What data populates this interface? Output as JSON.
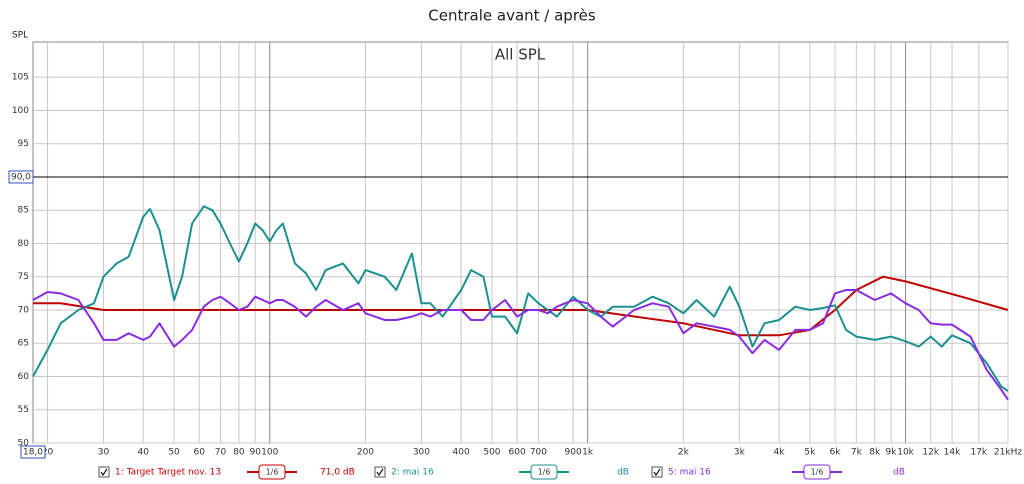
{
  "chart_data": {
    "type": "line",
    "title": "Centrale avant / après",
    "annotation": "All SPL",
    "y_label": "SPL",
    "log_x": true,
    "grid": true,
    "xlim": [
      18,
      21000
    ],
    "ylim": [
      50,
      110.3
    ],
    "yticks": [
      50,
      55,
      60,
      65,
      70,
      75,
      80,
      85,
      95,
      100,
      105
    ],
    "xticks": [
      20,
      30,
      40,
      50,
      60,
      70,
      80,
      90,
      100,
      200,
      300,
      400,
      500,
      600,
      700,
      900,
      {
        "value": 1000,
        "label": "1k"
      },
      {
        "value": 2000,
        "label": "2k"
      },
      {
        "value": 3000,
        "label": "3k"
      },
      {
        "value": 4000,
        "label": "4k"
      },
      {
        "value": 5000,
        "label": "5k"
      },
      {
        "value": 6000,
        "label": "6k"
      },
      {
        "value": 7000,
        "label": "7k"
      },
      {
        "value": 8000,
        "label": "8k"
      },
      {
        "value": 9000,
        "label": "9k"
      },
      {
        "value": 10000,
        "label": "10k"
      },
      {
        "value": 12000,
        "label": "12k"
      },
      {
        "value": 14000,
        "label": "14k"
      },
      {
        "value": 17000,
        "label": "17k"
      },
      {
        "value": 21000,
        "label": "21kHz"
      }
    ],
    "cursor_x": {
      "value": 18,
      "label": "18,0"
    },
    "cursor_y": {
      "value": 90,
      "label": "90,0"
    },
    "x": [
      18,
      20,
      22,
      25,
      28,
      30,
      33,
      36,
      40,
      42,
      45,
      50,
      53,
      57,
      62,
      66,
      70,
      75,
      80,
      85,
      90,
      95,
      100,
      105,
      110,
      120,
      130,
      140,
      150,
      170,
      190,
      200,
      230,
      250,
      280,
      300,
      320,
      350,
      400,
      430,
      470,
      500,
      550,
      600,
      650,
      700,
      750,
      800,
      900,
      1000,
      1100,
      1200,
      1400,
      1600,
      1800,
      2000,
      2200,
      2500,
      2800,
      3000,
      3300,
      3600,
      4000,
      4500,
      5000,
      5500,
      6000,
      6500,
      7000,
      8000,
      9000,
      10000,
      11000,
      12000,
      13000,
      14000,
      16000,
      18000,
      20000,
      21000
    ],
    "series": [
      {
        "name": "1: Target Target nov. 13",
        "color": "#c00000",
        "smoothing": "1/6",
        "offset": "71,0 dB",
        "x": [
          18,
          22,
          30,
          1000,
          2000,
          3000,
          4000,
          5000,
          6000,
          7000,
          8500,
          10000,
          15000,
          21000
        ],
        "values": [
          71,
          71,
          70,
          70,
          68,
          66.2,
          66.2,
          67,
          70,
          73,
          75,
          74.3,
          72,
          70
        ]
      },
      {
        "name": "2: mai 16",
        "color": "#1a9090",
        "smoothing": "1/6",
        "offset": "dB",
        "values": [
          60,
          64,
          68,
          70,
          71,
          75,
          77,
          78,
          84,
          85.2,
          82,
          71.5,
          75,
          83,
          85.6,
          85,
          83,
          80,
          77.3,
          80,
          83,
          82,
          80.3,
          82,
          83,
          77,
          75.5,
          73,
          76,
          77,
          74,
          76,
          75,
          73,
          78.5,
          71,
          71,
          69,
          73,
          76,
          75,
          69,
          69,
          66.5,
          72.5,
          71,
          70,
          69,
          72,
          70,
          69,
          70.5,
          70.5,
          72,
          71,
          69.5,
          71.5,
          69,
          73.5,
          70.5,
          64.5,
          68,
          68.5,
          70.5,
          70,
          70.3,
          70.7,
          67,
          66,
          65.5,
          66,
          65.3,
          64.5,
          66,
          64.5,
          66.2,
          65,
          62,
          58.5,
          57.8
        ]
      },
      {
        "name": "5: mai 16",
        "color": "#8a2be2",
        "smoothing": "1/6",
        "offset": "dB",
        "values": [
          71.5,
          72.7,
          72.5,
          71.5,
          68,
          65.5,
          65.5,
          66.5,
          65.5,
          66,
          68,
          64.5,
          65.5,
          67,
          70.5,
          71.5,
          72,
          71,
          70,
          70.5,
          72,
          71.5,
          71,
          71.5,
          71.5,
          70.5,
          69,
          70.5,
          71.5,
          70,
          71,
          69.5,
          68.5,
          68.5,
          69,
          69.5,
          69,
          70,
          70,
          68.5,
          68.5,
          70,
          71.5,
          69,
          70,
          70,
          69.5,
          70.5,
          71.5,
          71,
          69,
          67.5,
          70,
          71,
          70.5,
          66.5,
          68,
          67.5,
          67,
          66,
          63.5,
          65.5,
          64,
          67,
          67,
          68,
          72.5,
          73,
          73,
          71.5,
          72.5,
          71,
          70,
          68,
          67.8,
          67.8,
          66,
          61,
          58,
          56.5
        ]
      }
    ]
  }
}
